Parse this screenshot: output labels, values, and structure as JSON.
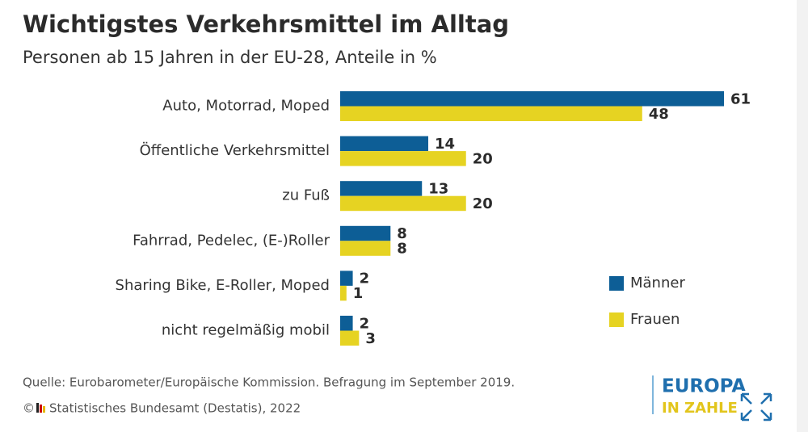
{
  "chart_data": {
    "type": "hbar",
    "title": "Wichtigstes Verkehrsmittel im Alltag",
    "subtitle": "Personen ab 15 Jahren in der EU-28, Anteile in %",
    "categories": [
      "Auto, Motorrad, Moped",
      "Öffentliche Verkehrsmittel",
      "zu Fuß",
      "Fahrrad, Pedelec, (E-)Roller",
      "Sharing Bike, E-Roller, Moped",
      "nicht regelmäßig mobil"
    ],
    "series": [
      {
        "name": "Männer",
        "color": "#0d5e96",
        "values": [
          61,
          14,
          13,
          8,
          2,
          2
        ]
      },
      {
        "name": "Frauen",
        "color": "#e6d322",
        "values": [
          48,
          20,
          20,
          8,
          1,
          3
        ]
      }
    ],
    "source": "Quelle: Eurobarometer/Europäische Kommission. Befragung im September 2019.",
    "copyright": "Statistisches Bundesamt (Destatis), 2022",
    "logo": [
      "EUROPA",
      "IN ZAHLEN"
    ]
  }
}
